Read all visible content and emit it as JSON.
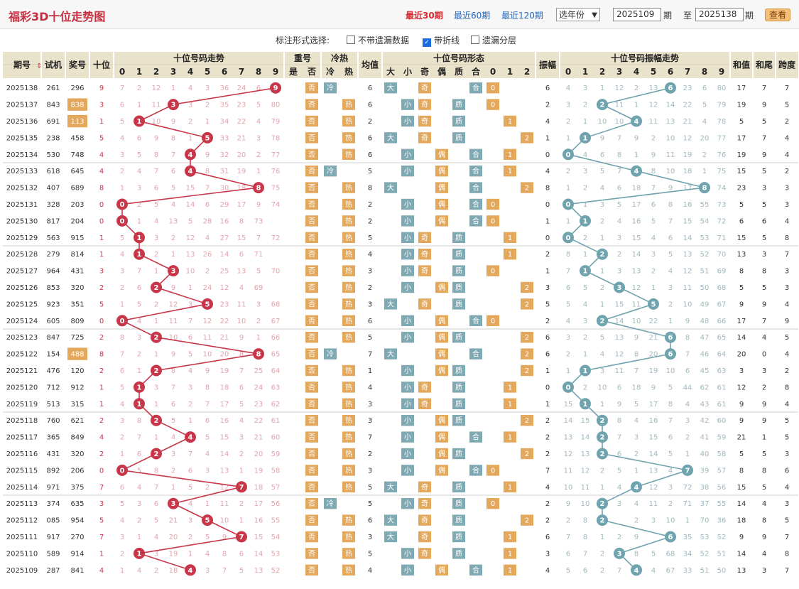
{
  "header": {
    "title": "福彩3D十位走势图",
    "periods": [
      {
        "label": "最近30期",
        "active": true
      },
      {
        "label": "最近60期",
        "active": false
      },
      {
        "label": "最近120期",
        "active": false
      }
    ],
    "year_select": "选年份",
    "from": "2025109",
    "from_label": "期",
    "to_label": "至",
    "to": "2025138",
    "to_label2": "期",
    "view_button": "查看"
  },
  "options": {
    "label": "标注形式选择:",
    "items": [
      {
        "label": "不带遗漏数据",
        "checked": false
      },
      {
        "label": "带折线",
        "checked": true
      },
      {
        "label": "遗漏分层",
        "checked": false
      }
    ]
  },
  "columns": {
    "issue": "期号",
    "test": "试机",
    "prize": "奖号",
    "tens": "十位",
    "trend_group": "十位号码走势",
    "repeat_group": "重号",
    "repeat_sub": [
      "是",
      "否"
    ],
    "hotcold_group": "冷热",
    "hotcold_sub": [
      "冷",
      "热"
    ],
    "avg": "均值",
    "form_group": "十位号码形态",
    "form_sub": [
      "大",
      "小",
      "奇",
      "偶",
      "质",
      "合",
      "0",
      "1",
      "2"
    ],
    "amp": "振幅",
    "amp_group": "十位号码振幅走势",
    "sum": "和值",
    "sumtail": "和尾",
    "span": "跨度",
    "digits": [
      "0",
      "1",
      "2",
      "3",
      "4",
      "5",
      "6",
      "7",
      "8",
      "9"
    ]
  },
  "colors": {
    "red": "#c8364a",
    "teal": "#7fa9b3",
    "orange": "#e3a85c",
    "blue": "#6fa3ad",
    "bg": "#ffffff",
    "head": "#eae3cc"
  },
  "rows": [
    {
      "issue": "2025138",
      "test": "261",
      "prize": "296",
      "tens": 9,
      "hot": "冷",
      "avg": 6,
      "amp": 6,
      "sum": 17,
      "sumtail": 7,
      "span": 7,
      "trend": [
        7,
        2,
        12,
        1,
        4,
        3,
        36,
        24,
        6,
        null
      ],
      "amp_miss": [
        4,
        3,
        1,
        12,
        2,
        13,
        null,
        23,
        6,
        80
      ],
      "hi_prize": false
    },
    {
      "issue": "2025137",
      "test": "843",
      "prize": "838",
      "tens": 3,
      "hot": "热",
      "avg": 6,
      "amp": 2,
      "sum": 19,
      "sumtail": 9,
      "span": 5,
      "trend": [
        6,
        1,
        11,
        null,
        3,
        2,
        35,
        23,
        5,
        80
      ],
      "amp_miss": [
        3,
        2,
        null,
        11,
        1,
        12,
        14,
        22,
        5,
        79
      ],
      "hi_prize": true
    },
    {
      "issue": "2025136",
      "test": "691",
      "prize": "113",
      "tens": 1,
      "hot": "热",
      "avg": 2,
      "amp": 4,
      "sum": 5,
      "sumtail": 5,
      "span": 2,
      "trend": [
        5,
        null,
        10,
        9,
        2,
        1,
        34,
        22,
        4,
        79
      ],
      "amp_miss": [
        2,
        1,
        10,
        10,
        null,
        11,
        13,
        21,
        4,
        78
      ],
      "hi_prize": true
    },
    {
      "issue": "2025135",
      "test": "238",
      "prize": "458",
      "tens": 5,
      "hot": "热",
      "avg": 6,
      "amp": 1,
      "sum": 17,
      "sumtail": 7,
      "span": 4,
      "trend": [
        4,
        6,
        9,
        8,
        1,
        null,
        33,
        21,
        3,
        78
      ],
      "amp_miss": [
        1,
        null,
        9,
        7,
        9,
        2,
        10,
        12,
        20,
        77
      ],
      "hi_prize": false
    },
    {
      "issue": "2025134",
      "test": "530",
      "prize": "748",
      "tens": 4,
      "hot": "热",
      "avg": 6,
      "amp": 0,
      "sum": 19,
      "sumtail": 9,
      "span": 4,
      "trend": [
        3,
        5,
        8,
        7,
        null,
        9,
        32,
        20,
        2,
        77
      ],
      "amp_miss": [
        null,
        4,
        6,
        8,
        1,
        9,
        11,
        19,
        2,
        76
      ],
      "hi_prize": false
    },
    {
      "issue": "2025133",
      "test": "618",
      "prize": "645",
      "tens": 4,
      "hot": "冷",
      "avg": 5,
      "amp": 4,
      "sum": 15,
      "sumtail": 5,
      "span": 2,
      "trend": [
        2,
        4,
        7,
        6,
        null,
        8,
        31,
        19,
        1,
        76
      ],
      "amp_miss": [
        2,
        3,
        5,
        7,
        null,
        8,
        10,
        18,
        1,
        75
      ],
      "hi_prize": false
    },
    {
      "issue": "2025132",
      "test": "407",
      "prize": "689",
      "tens": 8,
      "hot": "热",
      "avg": 8,
      "amp": 8,
      "sum": 23,
      "sumtail": 3,
      "span": 3,
      "trend": [
        1,
        3,
        6,
        5,
        15,
        7,
        30,
        18,
        null,
        75
      ],
      "amp_miss": [
        1,
        2,
        4,
        6,
        18,
        7,
        9,
        17,
        null,
        74
      ],
      "hi_prize": false
    },
    {
      "issue": "2025131",
      "test": "328",
      "prize": "203",
      "tens": 0,
      "hot": "热",
      "avg": 2,
      "amp": 0,
      "sum": 5,
      "sumtail": 5,
      "span": 3,
      "trend": [
        null,
        2,
        5,
        4,
        14,
        6,
        29,
        17,
        9,
        74
      ],
      "amp_miss": [
        null,
        1,
        3,
        5,
        17,
        6,
        8,
        16,
        55,
        73
      ],
      "hi_prize": false
    },
    {
      "issue": "2025130",
      "test": "817",
      "prize": "204",
      "tens": 0,
      "hot": "热",
      "avg": 2,
      "amp": 1,
      "sum": 6,
      "sumtail": 6,
      "span": 4,
      "trend": [
        null,
        1,
        4,
        13,
        5,
        28,
        16,
        8,
        73,
        null
      ],
      "amp_miss": [
        1,
        null,
        2,
        4,
        16,
        5,
        7,
        15,
        54,
        72
      ],
      "hi_prize": false
    },
    {
      "issue": "2025129",
      "test": "563",
      "prize": "915",
      "tens": 1,
      "hot": "热",
      "avg": 5,
      "amp": 0,
      "sum": 15,
      "sumtail": 5,
      "span": 8,
      "trend": [
        5,
        null,
        3,
        2,
        12,
        4,
        27,
        15,
        7,
        72
      ],
      "amp_miss": [
        null,
        2,
        1,
        3,
        15,
        4,
        6,
        14,
        53,
        71
      ],
      "hi_prize": false
    },
    {
      "issue": "2025128",
      "test": "279",
      "prize": "814",
      "tens": 1,
      "hot": "热",
      "avg": 4,
      "amp": 2,
      "sum": 13,
      "sumtail": 3,
      "span": 7,
      "trend": [
        4,
        null,
        2,
        1,
        13,
        26,
        14,
        6,
        71,
        null
      ],
      "amp_miss": [
        8,
        1,
        null,
        2,
        14,
        3,
        5,
        13,
        52,
        70
      ],
      "hi_prize": false
    },
    {
      "issue": "2025127",
      "test": "964",
      "prize": "431",
      "tens": 3,
      "hot": "热",
      "avg": 3,
      "amp": 1,
      "sum": 8,
      "sumtail": 8,
      "span": 3,
      "trend": [
        3,
        7,
        1,
        null,
        10,
        2,
        25,
        13,
        5,
        70
      ],
      "amp_miss": [
        7,
        null,
        1,
        3,
        13,
        2,
        4,
        12,
        51,
        69
      ],
      "hi_prize": false
    },
    {
      "issue": "2025126",
      "test": "853",
      "prize": "320",
      "tens": 2,
      "hot": "热",
      "avg": 2,
      "amp": 3,
      "sum": 5,
      "sumtail": 5,
      "span": 3,
      "trend": [
        2,
        6,
        null,
        9,
        1,
        24,
        12,
        4,
        69,
        null
      ],
      "amp_miss": [
        6,
        5,
        2,
        null,
        12,
        1,
        3,
        11,
        50,
        68
      ],
      "hi_prize": false
    },
    {
      "issue": "2025125",
      "test": "923",
      "prize": "351",
      "tens": 5,
      "hot": "热",
      "avg": 3,
      "amp": 5,
      "sum": 9,
      "sumtail": 9,
      "span": 4,
      "trend": [
        1,
        5,
        2,
        12,
        3,
        null,
        23,
        11,
        3,
        68
      ],
      "amp_miss": [
        5,
        4,
        1,
        15,
        11,
        null,
        2,
        10,
        49,
        67
      ],
      "hi_prize": false
    },
    {
      "issue": "2025124",
      "test": "605",
      "prize": "809",
      "tens": 0,
      "hot": "热",
      "avg": 6,
      "amp": 2,
      "sum": 17,
      "sumtail": 7,
      "span": 9,
      "trend": [
        null,
        4,
        1,
        11,
        7,
        12,
        22,
        10,
        2,
        67
      ],
      "amp_miss": [
        4,
        3,
        null,
        14,
        10,
        22,
        1,
        9,
        48,
        66
      ],
      "hi_prize": false
    },
    {
      "issue": "2025123",
      "test": "847",
      "prize": "725",
      "tens": 2,
      "hot": "热",
      "avg": 5,
      "amp": 6,
      "sum": 14,
      "sumtail": 4,
      "span": 5,
      "trend": [
        8,
        3,
        null,
        10,
        6,
        11,
        21,
        9,
        1,
        66
      ],
      "amp_miss": [
        3,
        2,
        5,
        13,
        9,
        21,
        null,
        8,
        47,
        65
      ],
      "hi_prize": false
    },
    {
      "issue": "2025122",
      "test": "154",
      "prize": "488",
      "tens": 8,
      "hot": "冷",
      "avg": 7,
      "amp": 6,
      "sum": 20,
      "sumtail": 0,
      "span": 4,
      "trend": [
        7,
        2,
        1,
        9,
        5,
        10,
        20,
        8,
        null,
        65
      ],
      "amp_miss": [
        2,
        1,
        4,
        12,
        8,
        20,
        null,
        7,
        46,
        64
      ],
      "hi_prize": true
    },
    {
      "issue": "2025121",
      "test": "476",
      "prize": "120",
      "tens": 2,
      "hot": "热",
      "avg": 1,
      "amp": 1,
      "sum": 3,
      "sumtail": 3,
      "span": 2,
      "trend": [
        6,
        1,
        null,
        8,
        4,
        9,
        19,
        7,
        25,
        64
      ],
      "amp_miss": [
        1,
        null,
        3,
        11,
        7,
        19,
        10,
        6,
        45,
        63
      ],
      "hi_prize": false
    },
    {
      "issue": "2025120",
      "test": "712",
      "prize": "912",
      "tens": 1,
      "hot": "热",
      "avg": 4,
      "amp": 0,
      "sum": 12,
      "sumtail": 2,
      "span": 8,
      "trend": [
        5,
        null,
        3,
        7,
        3,
        8,
        18,
        6,
        24,
        63
      ],
      "amp_miss": [
        null,
        2,
        10,
        6,
        18,
        9,
        5,
        44,
        62,
        61
      ],
      "hi_prize": false
    },
    {
      "issue": "2025119",
      "test": "513",
      "prize": "315",
      "tens": 1,
      "hot": "热",
      "avg": 3,
      "amp": 1,
      "sum": 9,
      "sumtail": 9,
      "span": 4,
      "trend": [
        4,
        null,
        1,
        6,
        2,
        7,
        17,
        5,
        23,
        62
      ],
      "amp_miss": [
        15,
        null,
        1,
        9,
        5,
        17,
        8,
        4,
        43,
        61
      ],
      "hi_prize": false
    },
    {
      "issue": "2025118",
      "test": "760",
      "prize": "621",
      "tens": 2,
      "hot": "热",
      "avg": 3,
      "amp": 2,
      "sum": 9,
      "sumtail": 9,
      "span": 5,
      "trend": [
        3,
        8,
        null,
        5,
        1,
        6,
        16,
        4,
        22,
        61
      ],
      "amp_miss": [
        14,
        15,
        null,
        8,
        4,
        16,
        7,
        3,
        42,
        60
      ],
      "hi_prize": false
    },
    {
      "issue": "2025117",
      "test": "365",
      "prize": "849",
      "tens": 4,
      "hot": "热",
      "avg": 7,
      "amp": 2,
      "sum": 21,
      "sumtail": 1,
      "span": 5,
      "trend": [
        2,
        7,
        1,
        4,
        null,
        5,
        15,
        3,
        21,
        60
      ],
      "amp_miss": [
        13,
        14,
        null,
        7,
        3,
        15,
        6,
        2,
        41,
        59
      ],
      "hi_prize": false
    },
    {
      "issue": "2025116",
      "test": "431",
      "prize": "320",
      "tens": 2,
      "hot": "热",
      "avg": 2,
      "amp": 2,
      "sum": 5,
      "sumtail": 5,
      "span": 3,
      "trend": [
        1,
        6,
        null,
        3,
        7,
        4,
        14,
        2,
        20,
        59
      ],
      "amp_miss": [
        12,
        13,
        null,
        6,
        2,
        14,
        5,
        1,
        40,
        58
      ],
      "hi_prize": false
    },
    {
      "issue": "2025115",
      "test": "892",
      "prize": "206",
      "tens": 0,
      "hot": "热",
      "avg": 3,
      "amp": 7,
      "sum": 8,
      "sumtail": 8,
      "span": 6,
      "trend": [
        null,
        5,
        8,
        2,
        6,
        3,
        13,
        1,
        19,
        58
      ],
      "amp_miss": [
        11,
        12,
        2,
        5,
        1,
        13,
        4,
        null,
        39,
        57
      ],
      "hi_prize": false
    },
    {
      "issue": "2025114",
      "test": "971",
      "prize": "375",
      "tens": 7,
      "hot": "热",
      "avg": 5,
      "amp": 4,
      "sum": 15,
      "sumtail": 5,
      "span": 4,
      "trend": [
        6,
        4,
        7,
        1,
        5,
        2,
        12,
        null,
        18,
        57
      ],
      "amp_miss": [
        10,
        11,
        1,
        4,
        null,
        12,
        3,
        72,
        38,
        56
      ],
      "hi_prize": false
    },
    {
      "issue": "2025113",
      "test": "374",
      "prize": "635",
      "tens": 3,
      "hot": "冷",
      "avg": 5,
      "amp": 2,
      "sum": 14,
      "sumtail": 4,
      "span": 3,
      "trend": [
        5,
        3,
        6,
        null,
        4,
        1,
        11,
        2,
        17,
        56
      ],
      "amp_miss": [
        9,
        10,
        null,
        3,
        4,
        11,
        2,
        71,
        37,
        55
      ],
      "hi_prize": false
    },
    {
      "issue": "2025112",
      "test": "085",
      "prize": "954",
      "tens": 5,
      "hot": "热",
      "avg": 6,
      "amp": 2,
      "sum": 18,
      "sumtail": 8,
      "span": 5,
      "trend": [
        4,
        2,
        5,
        21,
        3,
        null,
        10,
        1,
        16,
        55
      ],
      "amp_miss": [
        2,
        8,
        9,
        null,
        2,
        3,
        10,
        1,
        70,
        36
      ],
      "hi_prize": false
    },
    {
      "issue": "2025111",
      "test": "917",
      "prize": "270",
      "tens": 7,
      "hot": "热",
      "avg": 3,
      "amp": 6,
      "sum": 9,
      "sumtail": 9,
      "span": 7,
      "trend": [
        3,
        1,
        4,
        20,
        2,
        5,
        9,
        null,
        15,
        54
      ],
      "amp_miss": [
        7,
        8,
        1,
        2,
        9,
        null,
        69,
        35,
        53,
        52
      ],
      "hi_prize": false
    },
    {
      "issue": "2025110",
      "test": "589",
      "prize": "914",
      "tens": 1,
      "hot": "热",
      "avg": 5,
      "amp": 3,
      "sum": 14,
      "sumtail": 4,
      "span": 8,
      "trend": [
        2,
        null,
        3,
        19,
        1,
        4,
        8,
        6,
        14,
        53
      ],
      "amp_miss": [
        6,
        7,
        2,
        null,
        8,
        5,
        68,
        34,
        52,
        51
      ],
      "hi_prize": false
    },
    {
      "issue": "2025109",
      "test": "287",
      "prize": "841",
      "tens": 4,
      "hot": "热",
      "avg": 4,
      "amp": 4,
      "sum": 13,
      "sumtail": 3,
      "span": 7,
      "trend": [
        1,
        4,
        2,
        18,
        null,
        3,
        7,
        5,
        13,
        52
      ],
      "amp_miss": [
        5,
        6,
        2,
        7,
        null,
        4,
        67,
        33,
        51,
        50
      ],
      "hi_prize": false
    }
  ],
  "chart_data": {
    "type": "line",
    "title": "福彩3D十位走势图",
    "x": [
      "2025138",
      "2025137",
      "2025136",
      "2025135",
      "2025134",
      "2025133",
      "2025132",
      "2025131",
      "2025130",
      "2025129",
      "2025128",
      "2025127",
      "2025126",
      "2025125",
      "2025124",
      "2025123",
      "2025122",
      "2025121",
      "2025120",
      "2025119",
      "2025118",
      "2025117",
      "2025116",
      "2025115",
      "2025114",
      "2025113",
      "2025112",
      "2025111",
      "2025110",
      "2025109"
    ],
    "series": [
      {
        "name": "十位号码走势",
        "values": [
          9,
          3,
          1,
          5,
          4,
          4,
          8,
          0,
          0,
          1,
          1,
          3,
          2,
          5,
          0,
          2,
          8,
          2,
          1,
          1,
          2,
          4,
          2,
          0,
          7,
          3,
          5,
          7,
          1,
          4
        ]
      },
      {
        "name": "十位号码振幅走势",
        "values": [
          6,
          2,
          4,
          1,
          0,
          4,
          8,
          0,
          1,
          0,
          2,
          1,
          3,
          5,
          2,
          6,
          6,
          1,
          0,
          1,
          2,
          2,
          2,
          7,
          4,
          2,
          2,
          6,
          3,
          4
        ]
      }
    ],
    "ylim": [
      0,
      9
    ]
  }
}
